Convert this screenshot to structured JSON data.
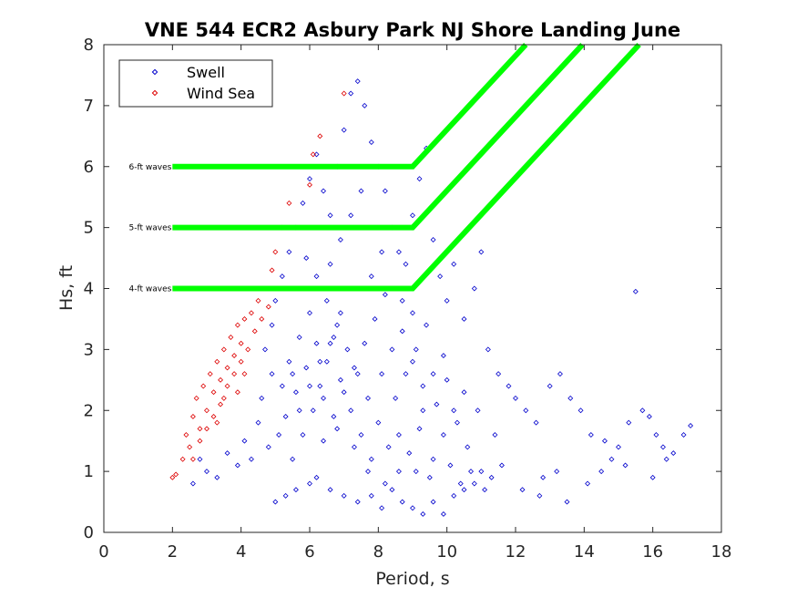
{
  "chart_data": {
    "type": "scatter",
    "title": "VNE 544 ECR2 Asbury Park NJ Shore Landing June",
    "xlabel": "Period, s",
    "ylabel": "Hs, ft",
    "xlim": [
      0,
      18
    ],
    "ylim": [
      0,
      8
    ],
    "xticks": [
      "0",
      "2",
      "4",
      "6",
      "8",
      "10",
      "12",
      "14",
      "16",
      "18"
    ],
    "yticks": [
      "0",
      "1",
      "2",
      "3",
      "4",
      "5",
      "6",
      "7",
      "8"
    ],
    "grid": false,
    "legend_position": "top-left",
    "colors": {
      "swell": "#0000cc",
      "wind_sea": "#dd0000",
      "threshold": "#00ff00"
    },
    "series": [
      {
        "name": "Swell",
        "marker": "diamond",
        "points": [
          [
            5.0,
            0.5
          ],
          [
            5.3,
            0.6
          ],
          [
            5.6,
            0.7
          ],
          [
            6.0,
            0.8
          ],
          [
            6.2,
            0.9
          ],
          [
            6.6,
            0.7
          ],
          [
            7.0,
            0.6
          ],
          [
            7.4,
            0.5
          ],
          [
            7.8,
            0.6
          ],
          [
            8.1,
            0.4
          ],
          [
            8.4,
            0.7
          ],
          [
            8.7,
            0.5
          ],
          [
            9.0,
            0.4
          ],
          [
            9.3,
            0.3
          ],
          [
            9.6,
            0.5
          ],
          [
            9.9,
            0.3
          ],
          [
            10.2,
            0.6
          ],
          [
            10.5,
            0.7
          ],
          [
            10.8,
            0.8
          ],
          [
            11.0,
            1.0
          ],
          [
            2.6,
            0.8
          ],
          [
            2.8,
            1.2
          ],
          [
            3.0,
            1.0
          ],
          [
            3.3,
            0.9
          ],
          [
            3.6,
            1.3
          ],
          [
            3.9,
            1.1
          ],
          [
            4.1,
            1.5
          ],
          [
            4.3,
            1.2
          ],
          [
            4.5,
            1.8
          ],
          [
            4.8,
            1.4
          ],
          [
            4.6,
            2.2
          ],
          [
            4.9,
            2.6
          ],
          [
            4.7,
            3.0
          ],
          [
            4.9,
            3.4
          ],
          [
            5.0,
            3.8
          ],
          [
            5.2,
            4.2
          ],
          [
            5.4,
            4.6
          ],
          [
            5.6,
            5.0
          ],
          [
            5.8,
            5.4
          ],
          [
            6.0,
            5.8
          ],
          [
            6.2,
            6.2
          ],
          [
            6.4,
            5.6
          ],
          [
            6.6,
            5.2
          ],
          [
            6.8,
            6.0
          ],
          [
            7.0,
            6.6
          ],
          [
            7.2,
            7.2
          ],
          [
            7.4,
            7.4
          ],
          [
            7.6,
            7.0
          ],
          [
            7.8,
            6.4
          ],
          [
            8.0,
            6.0
          ],
          [
            8.2,
            5.6
          ],
          [
            8.4,
            5.0
          ],
          [
            8.6,
            4.6
          ],
          [
            8.8,
            4.4
          ],
          [
            9.0,
            5.2
          ],
          [
            9.2,
            5.8
          ],
          [
            9.4,
            6.3
          ],
          [
            9.6,
            4.8
          ],
          [
            9.8,
            4.2
          ],
          [
            10.0,
            3.8
          ],
          [
            10.2,
            4.4
          ],
          [
            10.5,
            3.5
          ],
          [
            10.8,
            4.0
          ],
          [
            11.0,
            4.6
          ],
          [
            11.2,
            3.0
          ],
          [
            11.5,
            2.6
          ],
          [
            11.8,
            2.4
          ],
          [
            12.0,
            2.2
          ],
          [
            12.3,
            2.0
          ],
          [
            12.6,
            1.8
          ],
          [
            13.0,
            2.4
          ],
          [
            13.3,
            2.6
          ],
          [
            13.6,
            2.2
          ],
          [
            13.9,
            2.0
          ],
          [
            14.2,
            1.6
          ],
          [
            14.6,
            1.5
          ],
          [
            15.0,
            1.4
          ],
          [
            15.3,
            1.8
          ],
          [
            15.5,
            3.95
          ],
          [
            15.7,
            2.0
          ],
          [
            15.9,
            1.9
          ],
          [
            16.1,
            1.6
          ],
          [
            16.3,
            1.4
          ],
          [
            16.6,
            1.3
          ],
          [
            16.9,
            1.6
          ],
          [
            17.1,
            1.75
          ],
          [
            16.0,
            0.9
          ],
          [
            14.8,
            1.2
          ],
          [
            13.5,
            0.5
          ],
          [
            12.8,
            0.9
          ],
          [
            12.2,
            0.7
          ],
          [
            11.6,
            1.1
          ],
          [
            13.2,
            1.0
          ],
          [
            12.7,
            0.6
          ],
          [
            14.1,
            0.8
          ],
          [
            14.5,
            1.0
          ],
          [
            15.2,
            1.1
          ],
          [
            16.4,
            1.2
          ],
          [
            11.4,
            1.6
          ],
          [
            10.9,
            2.0
          ],
          [
            5.5,
            1.2
          ],
          [
            5.8,
            1.6
          ],
          [
            6.1,
            2.0
          ],
          [
            6.3,
            2.4
          ],
          [
            6.5,
            2.8
          ],
          [
            6.7,
            3.2
          ],
          [
            6.9,
            3.6
          ],
          [
            7.1,
            4.0
          ],
          [
            5.3,
            1.9
          ],
          [
            5.6,
            2.3
          ],
          [
            5.9,
            2.7
          ],
          [
            6.2,
            3.1
          ],
          [
            6.4,
            1.5
          ],
          [
            6.7,
            1.9
          ],
          [
            7.0,
            2.3
          ],
          [
            7.3,
            2.7
          ],
          [
            7.6,
            3.1
          ],
          [
            7.9,
            3.5
          ],
          [
            8.2,
            3.9
          ],
          [
            8.5,
            2.2
          ],
          [
            8.8,
            2.6
          ],
          [
            9.1,
            3.0
          ],
          [
            9.4,
            3.4
          ],
          [
            9.7,
            2.1
          ],
          [
            10.0,
            2.5
          ],
          [
            10.3,
            1.8
          ],
          [
            10.6,
            1.4
          ],
          [
            9.2,
            1.7
          ],
          [
            8.9,
            1.3
          ],
          [
            8.6,
            1.0
          ],
          [
            8.3,
            1.4
          ],
          [
            8.0,
            1.8
          ],
          [
            7.7,
            2.2
          ],
          [
            7.4,
            2.6
          ],
          [
            7.1,
            3.0
          ],
          [
            6.8,
            3.4
          ],
          [
            6.5,
            3.8
          ],
          [
            6.2,
            4.2
          ],
          [
            5.9,
            4.5
          ],
          [
            5.7,
            2.0
          ],
          [
            6.0,
            2.4
          ],
          [
            6.3,
            2.8
          ],
          [
            6.6,
            3.1
          ],
          [
            6.9,
            2.5
          ],
          [
            7.2,
            2.0
          ],
          [
            7.5,
            1.6
          ],
          [
            7.8,
            1.2
          ],
          [
            8.1,
            2.6
          ],
          [
            8.4,
            3.0
          ],
          [
            8.7,
            3.3
          ],
          [
            9.0,
            3.6
          ],
          [
            9.3,
            2.4
          ],
          [
            9.6,
            1.2
          ],
          [
            9.9,
            1.6
          ],
          [
            10.2,
            2.0
          ],
          [
            10.5,
            2.3
          ],
          [
            5.4,
            2.8
          ],
          [
            5.7,
            3.2
          ],
          [
            6.0,
            3.6
          ],
          [
            6.3,
            4.0
          ],
          [
            6.6,
            4.4
          ],
          [
            6.9,
            4.8
          ],
          [
            7.2,
            5.2
          ],
          [
            7.5,
            5.6
          ],
          [
            7.8,
            4.2
          ],
          [
            8.1,
            4.6
          ],
          [
            8.4,
            4.0
          ],
          [
            8.7,
            3.8
          ],
          [
            9.0,
            2.8
          ],
          [
            9.3,
            2.0
          ],
          [
            9.6,
            2.6
          ],
          [
            9.9,
            2.9
          ],
          [
            5.1,
            1.6
          ],
          [
            5.2,
            2.4
          ],
          [
            5.5,
            2.6
          ],
          [
            6.4,
            2.2
          ],
          [
            6.8,
            1.7
          ],
          [
            7.3,
            1.4
          ],
          [
            7.7,
            1.0
          ],
          [
            8.2,
            0.8
          ],
          [
            8.6,
            1.6
          ],
          [
            9.1,
            1.0
          ],
          [
            9.5,
            0.9
          ],
          [
            10.1,
            1.1
          ],
          [
            10.4,
            0.8
          ],
          [
            10.7,
            1.0
          ],
          [
            11.1,
            0.7
          ],
          [
            11.3,
            0.9
          ]
        ]
      },
      {
        "name": "Wind Sea",
        "marker": "diamond",
        "points": [
          [
            2.0,
            0.9
          ],
          [
            2.1,
            0.95
          ],
          [
            2.3,
            1.2
          ],
          [
            2.4,
            1.6
          ],
          [
            2.5,
            1.4
          ],
          [
            2.6,
            1.9
          ],
          [
            2.7,
            2.2
          ],
          [
            2.8,
            1.7
          ],
          [
            2.9,
            2.4
          ],
          [
            3.0,
            2.0
          ],
          [
            3.1,
            2.6
          ],
          [
            3.2,
            2.3
          ],
          [
            3.3,
            2.8
          ],
          [
            3.4,
            2.5
          ],
          [
            3.5,
            3.0
          ],
          [
            3.6,
            2.7
          ],
          [
            3.7,
            3.2
          ],
          [
            3.8,
            2.9
          ],
          [
            3.9,
            3.4
          ],
          [
            4.0,
            3.1
          ],
          [
            4.1,
            3.5
          ],
          [
            4.2,
            3.0
          ],
          [
            4.3,
            3.6
          ],
          [
            4.4,
            3.3
          ],
          [
            4.5,
            3.8
          ],
          [
            4.6,
            3.5
          ],
          [
            4.7,
            4.0
          ],
          [
            4.8,
            3.7
          ],
          [
            4.9,
            4.3
          ],
          [
            5.0,
            4.6
          ],
          [
            5.2,
            5.0
          ],
          [
            5.4,
            5.4
          ],
          [
            3.0,
            1.7
          ],
          [
            3.2,
            1.9
          ],
          [
            3.4,
            2.1
          ],
          [
            3.6,
            2.4
          ],
          [
            3.8,
            2.6
          ],
          [
            4.0,
            2.8
          ],
          [
            2.6,
            1.2
          ],
          [
            2.8,
            1.5
          ],
          [
            3.3,
            1.8
          ],
          [
            3.5,
            2.2
          ],
          [
            3.9,
            2.3
          ],
          [
            4.1,
            2.6
          ],
          [
            6.0,
            5.7
          ],
          [
            6.1,
            6.2
          ],
          [
            6.3,
            6.5
          ],
          [
            7.0,
            7.2
          ]
        ]
      }
    ],
    "threshold_lines": [
      {
        "label": "4-ft waves",
        "points": [
          [
            2,
            4
          ],
          [
            9,
            4
          ],
          [
            15.6,
            8
          ]
        ]
      },
      {
        "label": "5-ft waves",
        "points": [
          [
            2,
            5
          ],
          [
            9,
            5
          ],
          [
            13.95,
            8
          ]
        ]
      },
      {
        "label": "6-ft waves",
        "points": [
          [
            2,
            6
          ],
          [
            9,
            6
          ],
          [
            12.3,
            8
          ]
        ]
      }
    ]
  }
}
